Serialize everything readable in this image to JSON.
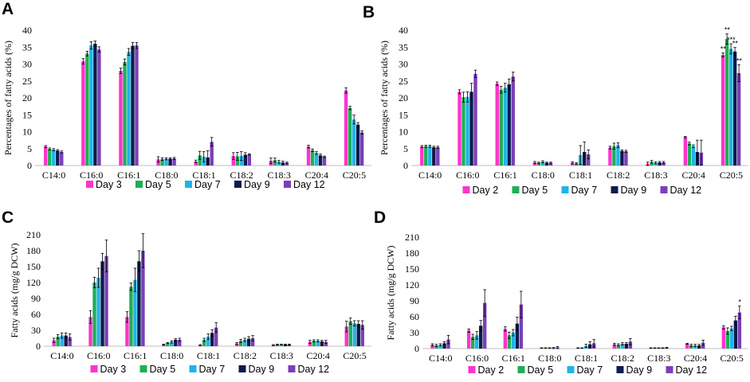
{
  "colors": {
    "series": [
      "#ff33cc",
      "#1fae55",
      "#1fb4e8",
      "#0d1b4d",
      "#7b3fb8"
    ]
  },
  "chart_data": [
    {
      "panel": "A",
      "type": "bar",
      "ylabel": "Percentages of fatty acids (%)",
      "xlabel": "",
      "ylim": [
        0,
        40
      ],
      "yticks": [
        0,
        5,
        10,
        15,
        20,
        25,
        30,
        35,
        40
      ],
      "categories": [
        "C14:0",
        "C16:0",
        "C16:1",
        "C18:0",
        "C18:1",
        "C18:2",
        "C18:3",
        "C20:4",
        "C20:5"
      ],
      "series": [
        {
          "name": "Day 3",
          "values": [
            5.6,
            30.8,
            28.0,
            1.8,
            1.2,
            2.8,
            1.4,
            5.6,
            22.2
          ],
          "errors": [
            0.3,
            0.8,
            0.8,
            0.8,
            0.4,
            1.0,
            0.8,
            0.4,
            0.8
          ]
        },
        {
          "name": "Day 5",
          "values": [
            4.9,
            33.1,
            30.6,
            1.9,
            3.0,
            2.7,
            1.6,
            4.5,
            17.0
          ],
          "errors": [
            0.3,
            0.7,
            0.9,
            0.4,
            1.2,
            1.2,
            0.6,
            0.4,
            0.5
          ]
        },
        {
          "name": "Day 7",
          "values": [
            4.7,
            35.5,
            33.6,
            2.0,
            2.6,
            2.8,
            1.1,
            3.7,
            13.6
          ],
          "errors": [
            0.3,
            1.1,
            1.0,
            0.3,
            1.5,
            1.3,
            0.4,
            0.4,
            1.3
          ]
        },
        {
          "name": "Day 9",
          "values": [
            4.4,
            36.0,
            35.4,
            2.0,
            2.4,
            3.2,
            0.9,
            3.0,
            12.1
          ],
          "errors": [
            0.3,
            0.8,
            1.0,
            0.3,
            2.0,
            0.6,
            0.4,
            0.4,
            0.6
          ]
        },
        {
          "name": "Day 12",
          "values": [
            4.0,
            34.3,
            35.5,
            2.1,
            7.0,
            3.3,
            0.8,
            2.6,
            9.8
          ],
          "errors": [
            0.3,
            0.8,
            0.9,
            0.3,
            1.3,
            0.2,
            0.2,
            0.2,
            0.5
          ]
        }
      ],
      "annotations": []
    },
    {
      "panel": "B",
      "type": "bar",
      "ylabel": "Percentages of fatty acids (%)",
      "xlabel": "",
      "ylim": [
        0,
        40
      ],
      "yticks": [
        0,
        5,
        10,
        15,
        20,
        25,
        30,
        35,
        40
      ],
      "categories": [
        "C14:0",
        "C16:0",
        "C16:1",
        "C18:0",
        "C18:1",
        "C18:2",
        "C18:3",
        "C20:4",
        "C20:5"
      ],
      "series": [
        {
          "name": "Day 2",
          "values": [
            5.6,
            21.8,
            24.2,
            0.9,
            0.8,
            5.3,
            0.5,
            8.4,
            32.7
          ],
          "errors": [
            0.3,
            0.6,
            0.5,
            0.3,
            0.3,
            0.4,
            0.5,
            0.2,
            0.6
          ]
        },
        {
          "name": "Day 5",
          "values": [
            5.7,
            20.2,
            22.4,
            0.8,
            0.6,
            5.7,
            1.1,
            6.5,
            37.4
          ],
          "errors": [
            0.3,
            1.5,
            1.0,
            0.2,
            0.2,
            0.9,
            0.4,
            0.4,
            1.5
          ]
        },
        {
          "name": "Day 7",
          "values": [
            5.7,
            20.3,
            23.0,
            1.1,
            3.1,
            6.0,
            0.8,
            5.7,
            34.5
          ],
          "errors": [
            0.3,
            1.5,
            1.3,
            0.3,
            2.8,
            0.7,
            0.3,
            0.4,
            1.5
          ]
        },
        {
          "name": "Day 9",
          "values": [
            5.4,
            21.8,
            24.0,
            0.8,
            4.0,
            4.3,
            0.9,
            4.0,
            33.7
          ],
          "errors": [
            0.3,
            2.5,
            1.6,
            0.2,
            3.0,
            0.3,
            0.3,
            3.5,
            1.2
          ]
        },
        {
          "name": "Day 12",
          "values": [
            5.4,
            27.1,
            26.3,
            0.8,
            3.3,
            4.2,
            0.9,
            3.8,
            27.3
          ],
          "errors": [
            0.3,
            1.1,
            1.3,
            0.2,
            1.3,
            0.3,
            0.3,
            3.7,
            2.5
          ]
        }
      ],
      "annotations": [
        {
          "category": "C20:5",
          "series": 0,
          "text": "**"
        },
        {
          "category": "C20:5",
          "series": 1,
          "text": "**"
        },
        {
          "category": "C20:5",
          "series": 2,
          "text": "***"
        },
        {
          "category": "C20:5",
          "series": 3,
          "text": "**"
        },
        {
          "category": "C20:5",
          "series": 4,
          "text": "**"
        }
      ]
    },
    {
      "panel": "C",
      "type": "bar",
      "ylabel": "Fatty acids (mg/g DCW)",
      "xlabel": "",
      "ylim": [
        0,
        210
      ],
      "yticks": [
        0,
        30,
        60,
        90,
        120,
        150,
        180,
        210
      ],
      "categories": [
        "C14:0",
        "C16:0",
        "C16:1",
        "C18:0",
        "C18:1",
        "C18:2",
        "C18:3",
        "C20:4",
        "C20:5"
      ],
      "series": [
        {
          "name": "Day 3",
          "values": [
            11,
            55,
            55,
            3,
            2,
            5,
            2,
            8,
            37
          ],
          "errors": [
            4,
            12,
            10,
            1,
            1,
            2,
            1,
            3,
            10
          ]
        },
        {
          "name": "Day 5",
          "values": [
            18,
            120,
            112,
            6,
            12,
            10,
            3,
            10,
            47
          ],
          "errors": [
            4,
            10,
            7,
            1,
            3,
            3,
            1,
            2,
            6
          ]
        },
        {
          "name": "Day 7",
          "values": [
            20,
            129,
            125,
            8,
            18,
            12,
            3,
            10,
            43
          ],
          "errors": [
            5,
            18,
            22,
            2,
            5,
            3,
            1,
            2,
            5
          ]
        },
        {
          "name": "Day 9",
          "values": [
            20,
            160,
            160,
            12,
            25,
            14,
            3,
            9,
            42
          ],
          "errors": [
            5,
            15,
            20,
            2,
            6,
            4,
            1,
            2,
            6
          ]
        },
        {
          "name": "Day 12",
          "values": [
            17,
            170,
            180,
            12,
            35,
            15,
            3,
            8,
            40
          ],
          "errors": [
            6,
            30,
            32,
            3,
            9,
            5,
            1,
            3,
            8
          ]
        }
      ],
      "annotations": []
    },
    {
      "panel": "D",
      "type": "bar",
      "ylabel": "Fatty acids (mg/g DCW)",
      "xlabel": "",
      "ylim": [
        0,
        210
      ],
      "yticks": [
        0,
        30,
        60,
        90,
        120,
        150,
        180,
        210
      ],
      "categories": [
        "C14:0",
        "C16:0",
        "C16:1",
        "C18:0",
        "C18:1",
        "C18:2",
        "C18:3",
        "C20:4",
        "C20:5"
      ],
      "series": [
        {
          "name": "Day 2",
          "values": [
            7,
            34,
            37,
            1,
            1,
            8,
            1,
            9,
            40
          ],
          "errors": [
            2,
            3,
            4,
            0.5,
            0.5,
            2,
            0.5,
            1,
            3
          ]
        },
        {
          "name": "Day 5",
          "values": [
            6,
            22,
            25,
            1,
            1,
            7,
            1,
            6,
            33
          ],
          "errors": [
            2,
            5,
            6,
            0.5,
            0.5,
            2,
            0.5,
            2,
            6
          ]
        },
        {
          "name": "Day 7",
          "values": [
            7,
            25,
            30,
            1,
            5,
            9,
            1,
            6,
            38
          ],
          "errors": [
            2,
            7,
            6,
            0.5,
            3,
            2,
            0.5,
            2,
            4
          ]
        },
        {
          "name": "Day 9",
          "values": [
            10,
            43,
            47,
            1,
            8,
            9,
            1,
            6,
            53
          ],
          "errors": [
            3,
            10,
            12,
            1,
            5,
            2,
            0.5,
            2,
            8
          ]
        },
        {
          "name": "Day 12",
          "values": [
            17,
            86,
            83,
            2,
            10,
            13,
            1.5,
            11,
            68
          ],
          "errors": [
            8,
            25,
            25,
            2,
            7,
            6,
            1,
            5,
            12
          ]
        }
      ],
      "annotations": [
        {
          "category": "C20:5",
          "series": 4,
          "text": "*"
        }
      ]
    }
  ]
}
